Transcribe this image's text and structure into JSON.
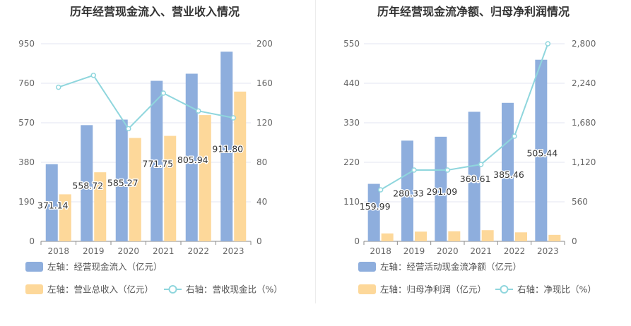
{
  "chart_data": [
    {
      "type": "bar",
      "title": "历年经营现金流入、营业收入情况",
      "categories": [
        "2018",
        "2019",
        "2020",
        "2021",
        "2022",
        "2023"
      ],
      "series": [
        {
          "name": "左轴：经营现金流入（亿元）",
          "axis": "left",
          "kind": "bar",
          "color": "#8eaedd",
          "values": [
            371.14,
            558.72,
            585.27,
            771.75,
            805.94,
            911.8
          ],
          "labels_shown": true
        },
        {
          "name": "左轴：营业总收入（亿元）",
          "axis": "left",
          "kind": "bar",
          "color": "#fdd89a",
          "values": [
            226,
            332,
            497,
            507,
            607,
            720
          ],
          "labels_shown": false
        },
        {
          "name": "右轴：营收现金比（%）",
          "axis": "right",
          "kind": "line",
          "color": "#8fd6dd",
          "values": [
            156,
            168,
            114,
            150,
            132,
            125
          ],
          "labels_shown": false
        }
      ],
      "left_axis": {
        "ticks": [
          "0",
          "190",
          "380",
          "570",
          "760",
          "950"
        ],
        "ylim": [
          0,
          950
        ]
      },
      "right_axis": {
        "ticks": [
          "0",
          "40",
          "80",
          "120",
          "160",
          "200"
        ],
        "ylim": [
          0,
          200
        ]
      },
      "legend_placement": "bottom-left",
      "grid": true
    },
    {
      "type": "bar",
      "title": "历年经营现金流净额、归母净利润情况",
      "categories": [
        "2018",
        "2019",
        "2020",
        "2021",
        "2022",
        "2023"
      ],
      "series": [
        {
          "name": "左轴：经营活动现金流净额（亿元）",
          "axis": "left",
          "kind": "bar",
          "color": "#8eaedd",
          "values": [
            159.99,
            280.33,
            291.09,
            360.61,
            385.46,
            505.44
          ],
          "labels_shown": true
        },
        {
          "name": "左轴：归母净利润（亿元）",
          "axis": "left",
          "kind": "bar",
          "color": "#fdd89a",
          "values": [
            22,
            27,
            28,
            31,
            25,
            18
          ],
          "labels_shown": false
        },
        {
          "name": "右轴：净现比（%）",
          "axis": "right",
          "kind": "line",
          "color": "#8fd6dd",
          "values": [
            730,
            1010,
            1010,
            1090,
            1490,
            2800
          ],
          "labels_shown": false
        }
      ],
      "left_axis": {
        "ticks": [
          "0",
          "110",
          "220",
          "330",
          "440",
          "550"
        ],
        "ylim": [
          0,
          550
        ]
      },
      "right_axis": {
        "ticks": [
          "0",
          "560",
          "1,120",
          "1,680",
          "2,240",
          "2,800"
        ],
        "ylim": [
          0,
          2800
        ]
      },
      "legend_placement": "bottom-left",
      "grid": true
    }
  ],
  "colors": {
    "bar_primary": "#8eaedd",
    "bar_secondary": "#fdd89a",
    "line": "#8fd6dd",
    "grid": "#e3e6f2",
    "axis": "#8a8a8a"
  }
}
